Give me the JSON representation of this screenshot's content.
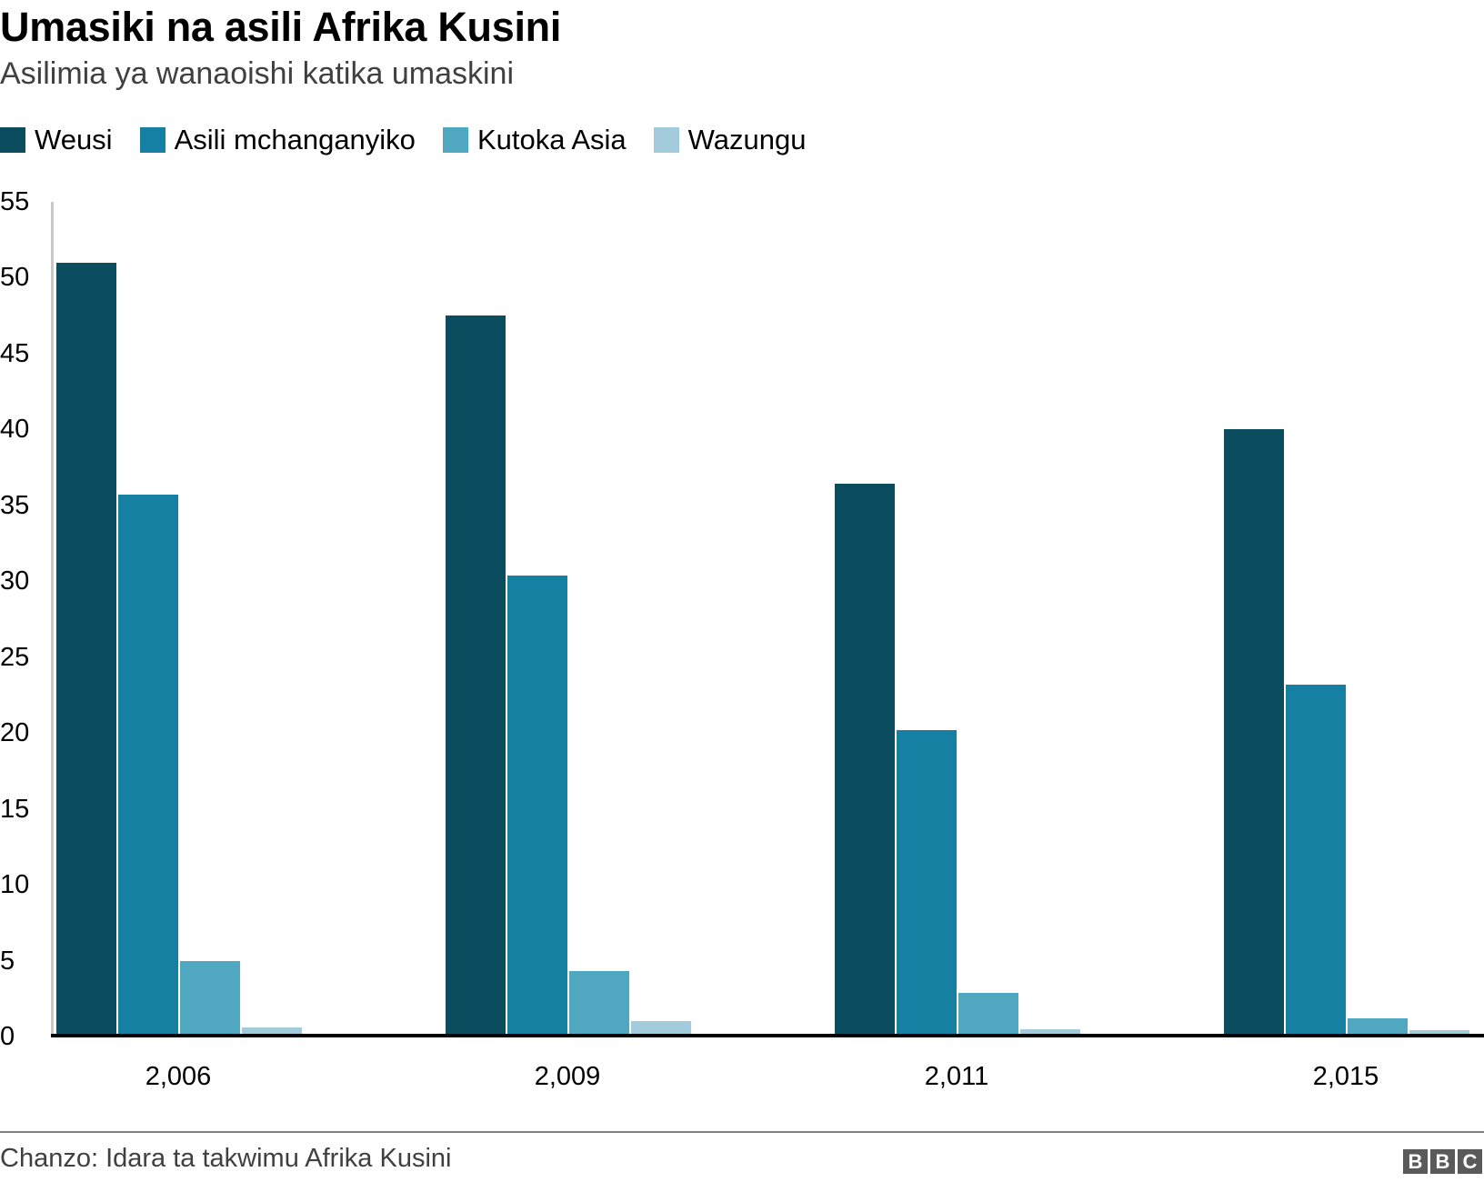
{
  "header": {
    "title": "Umasiki na asili Afrika Kusini",
    "subtitle": "Asilimia ya wanaoishi katika umaskini"
  },
  "legend": [
    {
      "label": "Weusi",
      "color": "#0c4c5f"
    },
    {
      "label": "Asili mchanganyiko",
      "color": "#1580a2"
    },
    {
      "label": "Kutoka Asia",
      "color": "#4fa8bf"
    },
    {
      "label": "Wazungu",
      "color": "#a2cbdb"
    }
  ],
  "y_ticks": [
    "0",
    "5",
    "10",
    "15",
    "20",
    "25",
    "30",
    "35",
    "40",
    "45",
    "50",
    "55"
  ],
  "x_ticks": [
    "2,006",
    "2,009",
    "2,011",
    "2,015"
  ],
  "footer": {
    "source": "Chanzo: Idara ta takwimu Afrika Kusini",
    "logo": [
      "B",
      "B",
      "C"
    ]
  },
  "chart_data": {
    "type": "bar",
    "title": "Umasiki na asili Afrika Kusini",
    "subtitle": "Asilimia ya wanaoishi katika umaskini",
    "xlabel": "",
    "ylabel": "",
    "categories": [
      "2,006",
      "2,009",
      "2,011",
      "2,015"
    ],
    "series": [
      {
        "name": "Weusi",
        "color": "#0c4c5f",
        "values": [
          51.0,
          47.5,
          36.4,
          40.0
        ]
      },
      {
        "name": "Asili mchanganyiko",
        "color": "#1580a2",
        "values": [
          35.7,
          30.4,
          20.2,
          23.2
        ]
      },
      {
        "name": "Kutoka Asia",
        "color": "#4fa8bf",
        "values": [
          5.0,
          4.3,
          2.9,
          1.2
        ]
      },
      {
        "name": "Wazungu",
        "color": "#a2cbdb",
        "values": [
          0.6,
          1.0,
          0.5,
          0.4
        ]
      }
    ],
    "ylim": [
      0,
      55
    ],
    "yticks": [
      0,
      5,
      10,
      15,
      20,
      25,
      30,
      35,
      40,
      45,
      50,
      55
    ],
    "grid": false,
    "legend_position": "top-left",
    "source": "Chanzo: Idara ta takwimu Afrika Kusini"
  }
}
